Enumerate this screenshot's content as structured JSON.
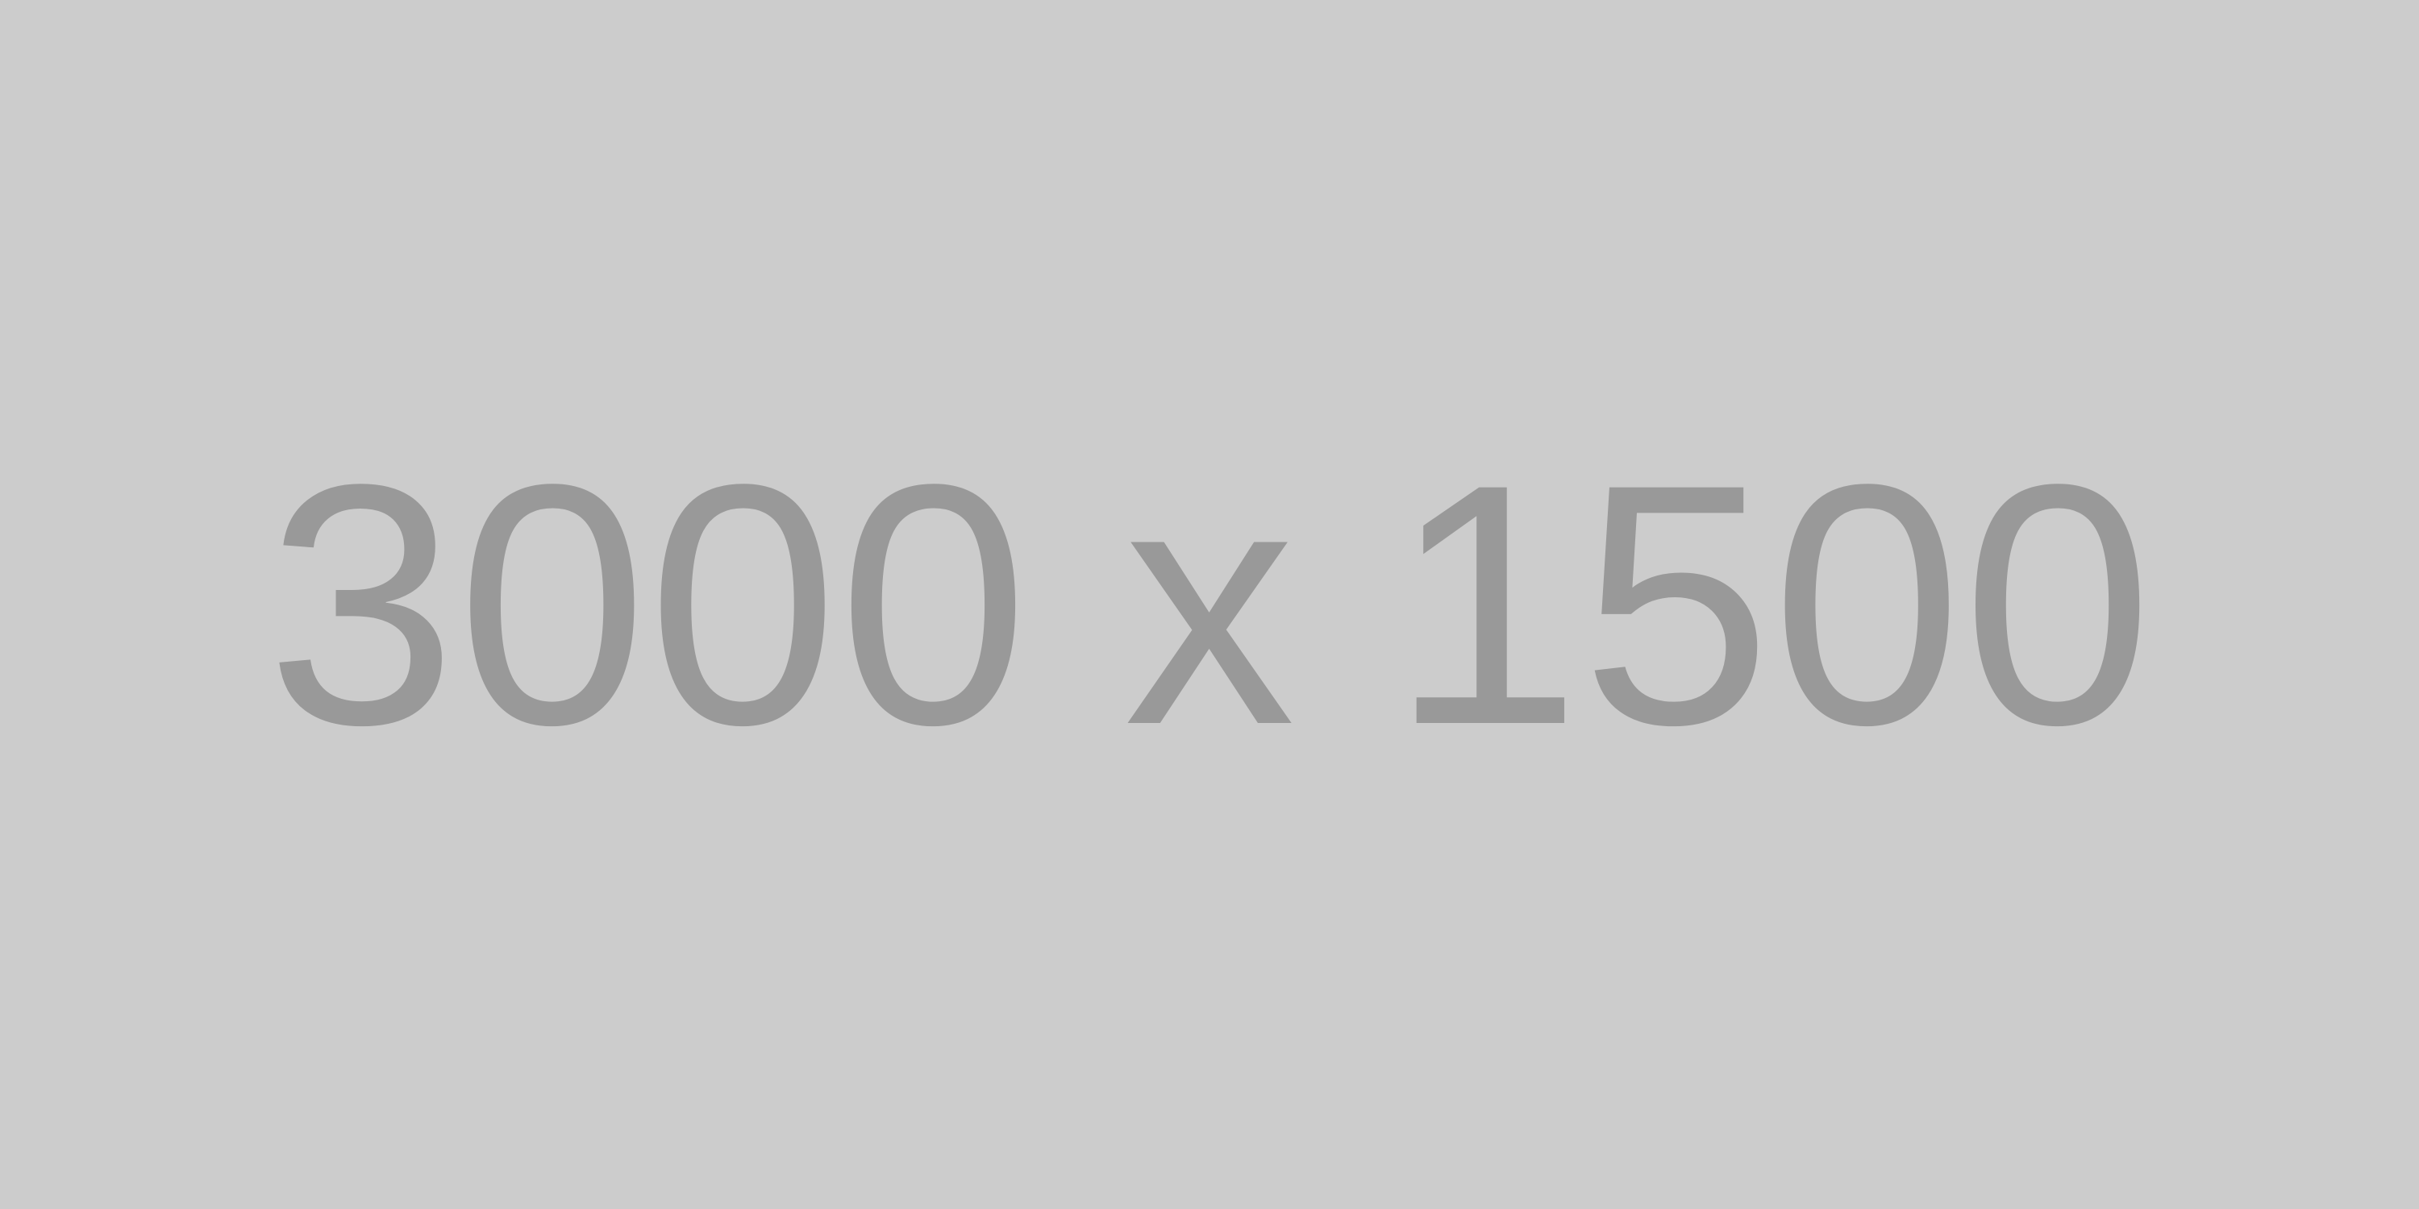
{
  "placeholder": {
    "label": "3000 x 1500",
    "background_color": "#cccccc",
    "text_color": "#999999"
  }
}
